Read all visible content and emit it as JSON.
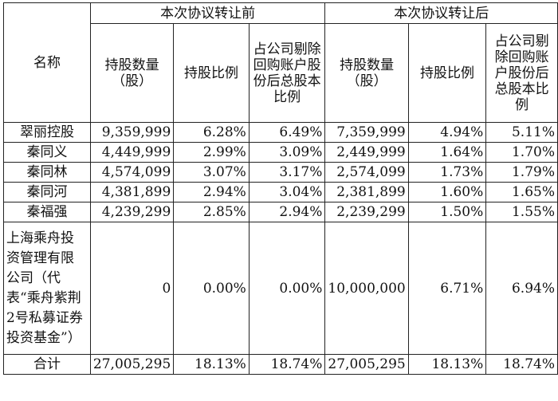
{
  "headers": {
    "name": "名称",
    "before_group": "本次协议转让前",
    "after_group": "本次协议转让后",
    "shares_count": "持股数量（股）",
    "share_ratio": "持股比例",
    "ratio_after_buyback": "占公司剔除回购账户股份后总股本比例"
  },
  "rows": [
    {
      "name": "翠丽控股",
      "before_shares": "9,359,999",
      "before_ratio": "6.28%",
      "before_adj": "6.49%",
      "after_shares": "7,359,999",
      "after_ratio": "4.94%",
      "after_adj": "5.11%"
    },
    {
      "name": "秦同义",
      "before_shares": "4,449,999",
      "before_ratio": "2.99%",
      "before_adj": "3.09%",
      "after_shares": "2,449,999",
      "after_ratio": "1.64%",
      "after_adj": "1.70%"
    },
    {
      "name": "秦同林",
      "before_shares": "4,574,099",
      "before_ratio": "3.07%",
      "before_adj": "3.17%",
      "after_shares": "2,574,099",
      "after_ratio": "1.73%",
      "after_adj": "1.79%"
    },
    {
      "name": "秦同河",
      "before_shares": "4,381,899",
      "before_ratio": "2.94%",
      "before_adj": "3.04%",
      "after_shares": "2,381,899",
      "after_ratio": "1.60%",
      "after_adj": "1.65%"
    },
    {
      "name": "秦福强",
      "before_shares": "4,239,299",
      "before_ratio": "2.85%",
      "before_adj": "2.94%",
      "after_shares": "2,239,299",
      "after_ratio": "1.50%",
      "after_adj": "1.55%"
    },
    {
      "name": "上海乘舟投资管理有限公司（代表“乘舟紫荆2号私募证券投资基金”）",
      "before_shares": "0",
      "before_ratio": "0.00%",
      "before_adj": "0.00%",
      "after_shares": "10,000,000",
      "after_ratio": "6.71%",
      "after_adj": "6.94%"
    }
  ],
  "total": {
    "name": "合计",
    "before_shares": "27,005,295",
    "before_ratio": "18.13%",
    "before_adj": "18.74%",
    "after_shares": "27,005,295",
    "after_ratio": "18.13%",
    "after_adj": "18.74%"
  }
}
